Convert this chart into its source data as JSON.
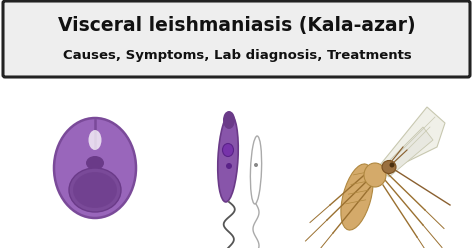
{
  "title_line1": "Visceral leishmaniasis (Kala-azar)",
  "title_line2": "Causes, Symptoms, Lab diagnosis, Treatments",
  "bg_color": "#ffffff",
  "header_bg": "#eeeeee",
  "header_border": "#222222",
  "title_color": "#111111",
  "subtitle_color": "#111111",
  "title_fontsize": 13.5,
  "subtitle_fontsize": 9.5,
  "cell_body": "#9966bb",
  "cell_edge": "#7a4a99",
  "cell_nucleus": "#7a4a99",
  "cell_nucleus_inner": "#6a3a88",
  "cell_kinetoplast": "#6a3a88",
  "pro_body": "#8855aa",
  "pro_edge": "#6a3a88",
  "fly_tan": "#d4aa6a",
  "fly_dark": "#b08840",
  "fly_head": "#8b6030",
  "fly_wing": "#f0f0e8",
  "fly_wing_edge": "#c8c8b0"
}
